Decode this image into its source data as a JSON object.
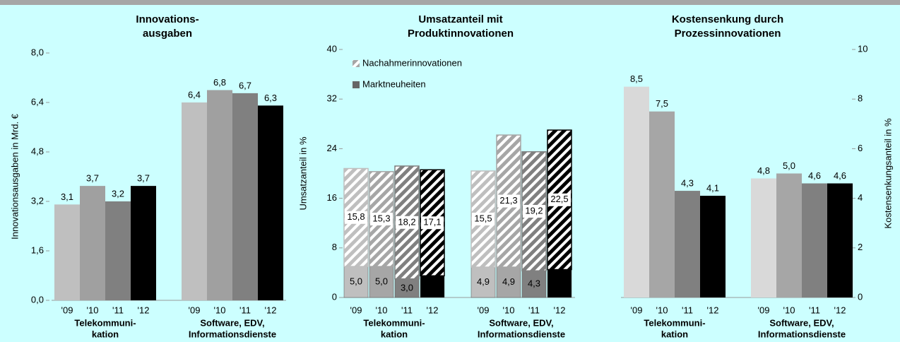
{
  "chart_data": [
    {
      "type": "bar",
      "title": [
        "Innovations-",
        "ausgaben"
      ],
      "ylabel": "Innovationsausgaben in Mrd. €",
      "groups": [
        [
          "Telekommuni-",
          "kation"
        ],
        [
          "Software, EDV,",
          "Informationsdienste"
        ]
      ],
      "years": [
        "'09",
        "'10",
        "'11",
        "'12"
      ],
      "colors": [
        "#bfbfbf",
        "#a0a0a0",
        "#808080",
        "#000000"
      ],
      "ylim": [
        0,
        8
      ],
      "yticks": [
        {
          "value": 0,
          "label": "0,0"
        },
        {
          "value": 1.6,
          "label": "1,6"
        },
        {
          "value": 3.2,
          "label": "3,2"
        },
        {
          "value": 4.8,
          "label": "4,8"
        },
        {
          "value": 6.4,
          "label": "6,4"
        },
        {
          "value": 8,
          "label": "8,0"
        }
      ],
      "series": [
        {
          "values": [
            [
              3.1,
              3.7,
              3.2,
              3.7
            ],
            [
              6.4,
              6.8,
              6.7,
              6.3
            ]
          ],
          "value_labels": [
            [
              "3,1",
              "3,7",
              "3,2",
              "3,7"
            ],
            [
              "6,4",
              "6,8",
              "6,7",
              "6,3"
            ]
          ]
        }
      ]
    },
    {
      "type": "stacked_bar",
      "title": [
        "Umsatzanteil mit",
        "Produktinnovationen"
      ],
      "ylabel": "Umsatzanteil in %",
      "groups": [
        [
          "Telekommuni-",
          "kation"
        ],
        [
          "Software, EDV,",
          "Informationsdienste"
        ]
      ],
      "years": [
        "'09",
        "'10",
        "'11",
        "'12"
      ],
      "colors": [
        "#bfbfbf",
        "#a6a6a6",
        "#808080",
        "#000000"
      ],
      "ylim": [
        0,
        40
      ],
      "yticks": [
        0,
        8,
        16,
        24,
        32,
        40
      ],
      "legend": "upper left",
      "series": [
        {
          "name": "Marktneuheiten",
          "color": "#666666",
          "hatch": false,
          "values": [
            [
              5.0,
              5.0,
              3.0,
              3.5
            ],
            [
              4.9,
              4.9,
              4.3,
              4.5
            ]
          ],
          "value_labels": [
            [
              "5,0",
              "5,0",
              "3,0",
              "3,5"
            ],
            [
              "4,9",
              "4,9",
              "4,3",
              "4,5"
            ]
          ]
        },
        {
          "name": "Nachahmerinnovationen",
          "color": "#a6a6a6",
          "hatch": true,
          "values": [
            [
              15.8,
              15.3,
              18.2,
              17.1
            ],
            [
              15.5,
              21.3,
              19.2,
              22.5
            ]
          ],
          "value_labels": [
            [
              "15,8",
              "15,3",
              "18,2",
              "17,1"
            ],
            [
              "15,5",
              "21,3",
              "19,2",
              "22,5"
            ]
          ]
        }
      ]
    },
    {
      "type": "bar",
      "title": [
        "Kostensenkung durch",
        "Prozessinnovationen"
      ],
      "ylabel": "Kostensenkungsanteil in %",
      "groups": [
        [
          "Telekommuni-",
          "kation"
        ],
        [
          "Software, EDV,",
          "Informationsdienste"
        ]
      ],
      "years": [
        "'09",
        "'10",
        "'11",
        "'12"
      ],
      "colors": [
        "#d9d9d9",
        "#a6a6a6",
        "#808080",
        "#000000"
      ],
      "y2lim": [
        0,
        10
      ],
      "y2ticks": [
        0,
        2,
        4,
        6,
        8,
        10
      ],
      "series": [
        {
          "axis": "y2",
          "values": [
            [
              8.5,
              7.5,
              4.3,
              4.1
            ],
            [
              4.8,
              5.0,
              4.6,
              4.6
            ]
          ],
          "value_labels": [
            [
              "8,5",
              "7,5",
              "4,3",
              "4,1"
            ],
            [
              "4,8",
              "5,0",
              "4,6",
              "4,6"
            ]
          ]
        }
      ]
    }
  ]
}
